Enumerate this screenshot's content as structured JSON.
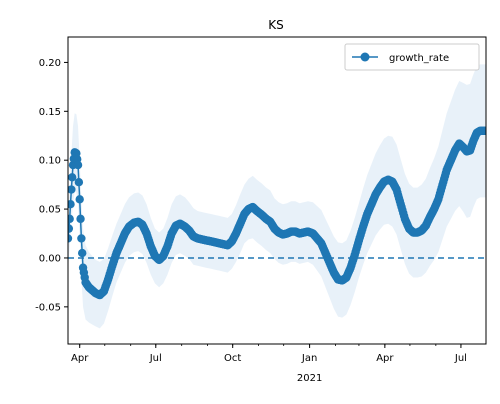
{
  "chart_data": {
    "type": "line",
    "title": "KS",
    "xlabel": "",
    "ylabel": "",
    "x_domain": [
      "2020-03-18",
      "2021-07-31"
    ],
    "ylim": [
      -0.088,
      0.226
    ],
    "y_ticks": [
      "0.20",
      "0.15",
      "0.10",
      "0.05",
      "0.00",
      "-0.05"
    ],
    "y_tick_values": [
      0.2,
      0.15,
      0.1,
      0.05,
      0.0,
      -0.05
    ],
    "x_ticks": [
      {
        "date": "2020-04-01",
        "label": "Apr"
      },
      {
        "date": "2020-07-01",
        "label": "Jul"
      },
      {
        "date": "2020-10-01",
        "label": "Oct"
      },
      {
        "date": "2021-01-01",
        "label": "Jan"
      },
      {
        "date": "2021-04-01",
        "label": "Apr"
      },
      {
        "date": "2021-07-01",
        "label": "Jul"
      }
    ],
    "x_year_label": {
      "date": "2021-01-01",
      "label": "2021"
    },
    "reference_line": {
      "y": 0.0,
      "style": "dashed"
    },
    "legend": {
      "position": "top-right",
      "entries": [
        "growth_rate"
      ]
    },
    "colors": {
      "series": "#1f77b4",
      "band": "#d6e6f4"
    },
    "series": [
      {
        "name": "growth_rate",
        "points": [
          [
            "2020-03-18",
            0.02
          ],
          [
            "2020-03-20",
            0.04
          ],
          [
            "2020-03-22",
            0.07
          ],
          [
            "2020-03-24",
            0.095
          ],
          [
            "2020-03-26",
            0.108
          ],
          [
            "2020-03-28",
            0.107
          ],
          [
            "2020-03-30",
            0.095
          ],
          [
            "2020-04-01",
            0.06
          ],
          [
            "2020-04-03",
            0.02
          ],
          [
            "2020-04-05",
            -0.01
          ],
          [
            "2020-04-08",
            -0.025
          ],
          [
            "2020-04-12",
            -0.03
          ],
          [
            "2020-04-16",
            -0.033
          ],
          [
            "2020-04-20",
            -0.036
          ],
          [
            "2020-04-25",
            -0.038
          ],
          [
            "2020-04-30",
            -0.034
          ],
          [
            "2020-05-05",
            -0.022
          ],
          [
            "2020-05-10",
            -0.008
          ],
          [
            "2020-05-15",
            0.005
          ],
          [
            "2020-05-20",
            0.015
          ],
          [
            "2020-05-25",
            0.025
          ],
          [
            "2020-05-30",
            0.032
          ],
          [
            "2020-06-05",
            0.036
          ],
          [
            "2020-06-10",
            0.037
          ],
          [
            "2020-06-15",
            0.034
          ],
          [
            "2020-06-20",
            0.025
          ],
          [
            "2020-06-25",
            0.012
          ],
          [
            "2020-06-30",
            0.002
          ],
          [
            "2020-07-05",
            -0.002
          ],
          [
            "2020-07-10",
            0.002
          ],
          [
            "2020-07-15",
            0.012
          ],
          [
            "2020-07-20",
            0.025
          ],
          [
            "2020-07-25",
            0.033
          ],
          [
            "2020-07-30",
            0.035
          ],
          [
            "2020-08-05",
            0.032
          ],
          [
            "2020-08-10",
            0.028
          ],
          [
            "2020-08-15",
            0.022
          ],
          [
            "2020-08-20",
            0.02
          ],
          [
            "2020-08-25",
            0.019
          ],
          [
            "2020-08-30",
            0.018
          ],
          [
            "2020-09-05",
            0.017
          ],
          [
            "2020-09-10",
            0.016
          ],
          [
            "2020-09-15",
            0.015
          ],
          [
            "2020-09-20",
            0.014
          ],
          [
            "2020-09-25",
            0.013
          ],
          [
            "2020-09-30",
            0.017
          ],
          [
            "2020-10-05",
            0.025
          ],
          [
            "2020-10-10",
            0.035
          ],
          [
            "2020-10-15",
            0.045
          ],
          [
            "2020-10-20",
            0.05
          ],
          [
            "2020-10-25",
            0.052
          ],
          [
            "2020-10-30",
            0.048
          ],
          [
            "2020-11-05",
            0.044
          ],
          [
            "2020-11-10",
            0.04
          ],
          [
            "2020-11-15",
            0.037
          ],
          [
            "2020-11-20",
            0.03
          ],
          [
            "2020-11-25",
            0.026
          ],
          [
            "2020-11-30",
            0.024
          ],
          [
            "2020-12-05",
            0.025
          ],
          [
            "2020-12-10",
            0.027
          ],
          [
            "2020-12-15",
            0.027
          ],
          [
            "2020-12-20",
            0.025
          ],
          [
            "2020-12-25",
            0.026
          ],
          [
            "2020-12-30",
            0.027
          ],
          [
            "2021-01-05",
            0.025
          ],
          [
            "2021-01-10",
            0.02
          ],
          [
            "2021-01-15",
            0.015
          ],
          [
            "2021-01-20",
            0.005
          ],
          [
            "2021-01-25",
            -0.005
          ],
          [
            "2021-01-30",
            -0.015
          ],
          [
            "2021-02-04",
            -0.022
          ],
          [
            "2021-02-09",
            -0.023
          ],
          [
            "2021-02-14",
            -0.02
          ],
          [
            "2021-02-19",
            -0.01
          ],
          [
            "2021-02-24",
            0.003
          ],
          [
            "2021-03-01",
            0.018
          ],
          [
            "2021-03-06",
            0.032
          ],
          [
            "2021-03-11",
            0.045
          ],
          [
            "2021-03-16",
            0.055
          ],
          [
            "2021-03-21",
            0.065
          ],
          [
            "2021-03-26",
            0.072
          ],
          [
            "2021-03-31",
            0.078
          ],
          [
            "2021-04-05",
            0.08
          ],
          [
            "2021-04-10",
            0.078
          ],
          [
            "2021-04-15",
            0.07
          ],
          [
            "2021-04-20",
            0.055
          ],
          [
            "2021-04-25",
            0.04
          ],
          [
            "2021-04-30",
            0.03
          ],
          [
            "2021-05-05",
            0.026
          ],
          [
            "2021-05-10",
            0.026
          ],
          [
            "2021-05-15",
            0.028
          ],
          [
            "2021-05-20",
            0.033
          ],
          [
            "2021-05-25",
            0.042
          ],
          [
            "2021-05-30",
            0.05
          ],
          [
            "2021-06-04",
            0.06
          ],
          [
            "2021-06-09",
            0.075
          ],
          [
            "2021-06-14",
            0.09
          ],
          [
            "2021-06-19",
            0.1
          ],
          [
            "2021-06-24",
            0.11
          ],
          [
            "2021-06-29",
            0.117
          ],
          [
            "2021-07-04",
            0.113
          ],
          [
            "2021-07-08",
            0.109
          ],
          [
            "2021-07-12",
            0.11
          ],
          [
            "2021-07-16",
            0.12
          ],
          [
            "2021-07-20",
            0.128
          ],
          [
            "2021-07-24",
            0.13
          ],
          [
            "2021-07-28",
            0.13
          ],
          [
            "2021-07-31",
            0.13
          ]
        ],
        "band_width": [
          0.03,
          0.03,
          0.035,
          0.04,
          0.04,
          0.04,
          0.04,
          0.04,
          0.04,
          0.04,
          0.038,
          0.036,
          0.035,
          0.034,
          0.034,
          0.033,
          0.032,
          0.031,
          0.03,
          0.03,
          0.03,
          0.03,
          0.03,
          0.03,
          0.03,
          0.03,
          0.029,
          0.028,
          0.028,
          0.028,
          0.029,
          0.03,
          0.03,
          0.03,
          0.03,
          0.029,
          0.029,
          0.028,
          0.028,
          0.028,
          0.028,
          0.028,
          0.028,
          0.028,
          0.028,
          0.028,
          0.029,
          0.03,
          0.03,
          0.031,
          0.032,
          0.032,
          0.032,
          0.032,
          0.032,
          0.031,
          0.031,
          0.031,
          0.031,
          0.031,
          0.031,
          0.031,
          0.031,
          0.031,
          0.032,
          0.033,
          0.034,
          0.035,
          0.036,
          0.037,
          0.038,
          0.038,
          0.038,
          0.038,
          0.038,
          0.038,
          0.039,
          0.04,
          0.041,
          0.042,
          0.043,
          0.044,
          0.045,
          0.046,
          0.046,
          0.046,
          0.046,
          0.046,
          0.046,
          0.046,
          0.047,
          0.048,
          0.05,
          0.052,
          0.054,
          0.056,
          0.058,
          0.06,
          0.062,
          0.064,
          0.066,
          0.068,
          0.068,
          0.068,
          0.068,
          0.068,
          0.068,
          0.068
        ]
      }
    ]
  }
}
